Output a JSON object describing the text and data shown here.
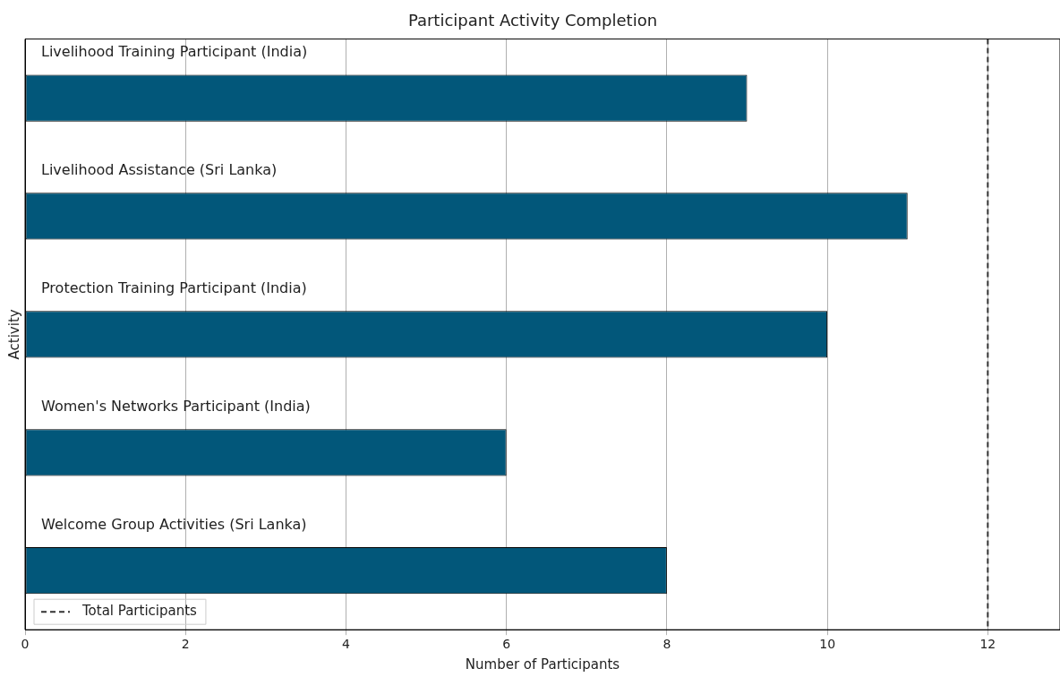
{
  "chart_data": {
    "type": "bar",
    "orientation": "horizontal",
    "title": "Participant Activity Completion",
    "xlabel": "Number of Participants",
    "ylabel": "Activity",
    "categories": [
      "Livelihood Training Participant (India)",
      "Livelihood Assistance (Sri Lanka)",
      "Protection Training Participant (India)",
      "Women's Networks Participant (India)",
      "Welcome Group Activities (Sri Lanka)"
    ],
    "values": [
      9,
      11,
      10,
      6,
      8
    ],
    "color": "#02577a",
    "xlim": [
      0,
      12.9
    ],
    "xticks": [
      0,
      2,
      4,
      6,
      8,
      10,
      12
    ],
    "grid": "x",
    "ref_lines": [
      {
        "axis": "x",
        "value": 12,
        "label": "Total Participants",
        "color": "#333333",
        "line_style": "dashed"
      }
    ],
    "legend": "bottom left"
  }
}
